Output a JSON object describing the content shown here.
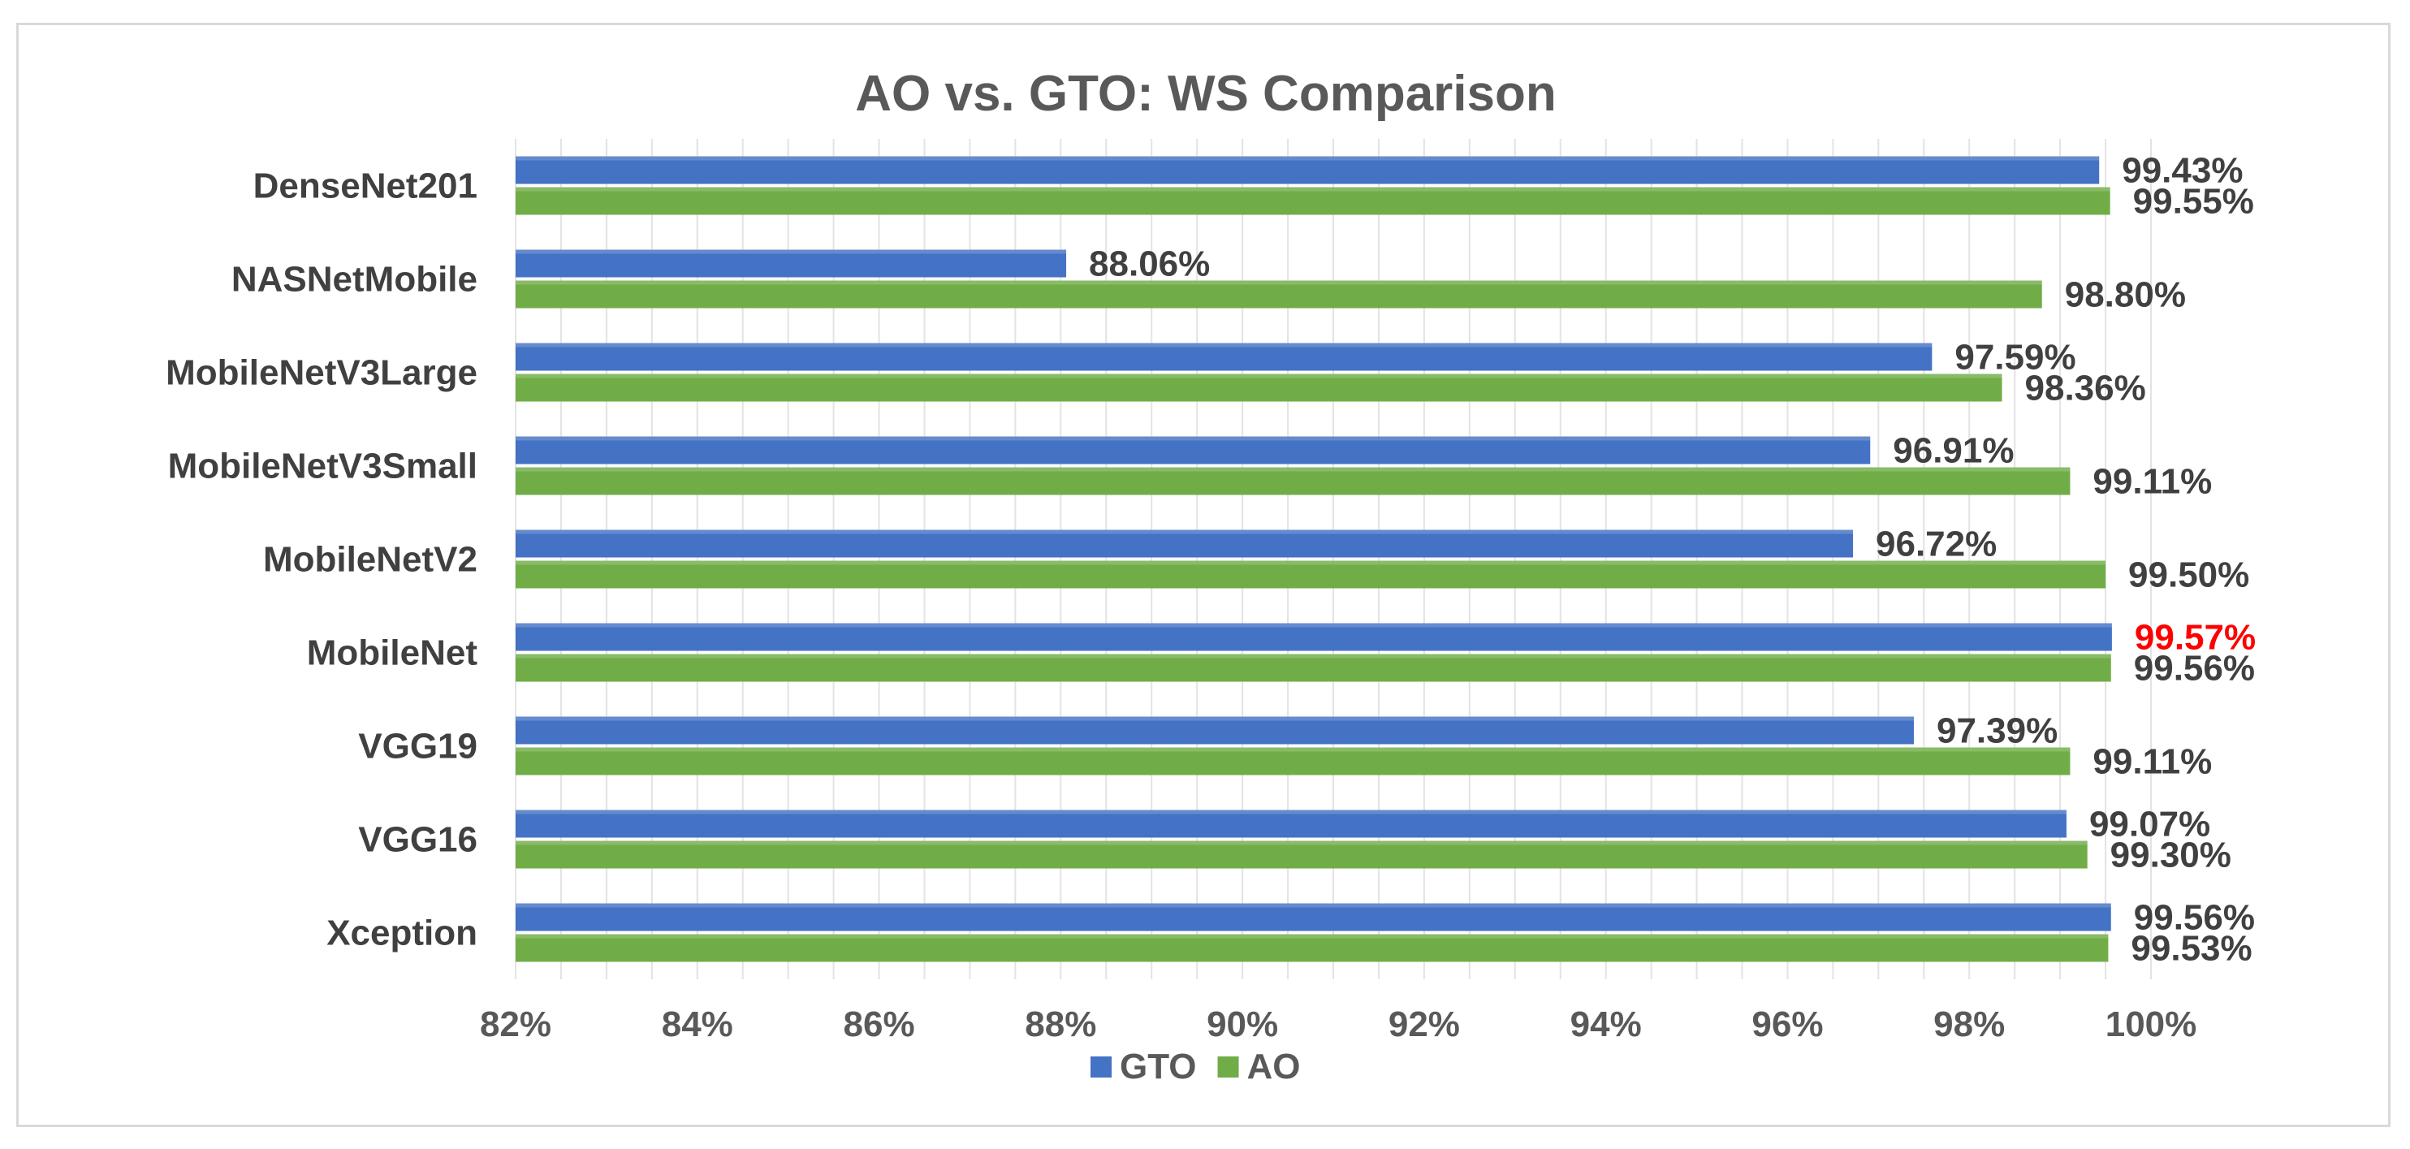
{
  "chart_data": {
    "type": "bar",
    "orientation": "horizontal",
    "title": "AO vs. GTO: WS Comparison",
    "categories": [
      "DenseNet201",
      "NASNetMobile",
      "MobileNetV3Large",
      "MobileNetV3Small",
      "MobileNetV2",
      "MobileNet",
      "VGG19",
      "VGG16",
      "Xception"
    ],
    "series": [
      {
        "name": "GTO",
        "color": "#4472c4",
        "values": [
          99.43,
          88.06,
          97.59,
          96.91,
          96.72,
          99.57,
          97.39,
          99.07,
          99.56
        ],
        "labels": [
          "99.43%",
          "88.06%",
          "97.59%",
          "96.91%",
          "96.72%",
          "99.57%",
          "97.39%",
          "99.07%",
          "99.56%"
        ]
      },
      {
        "name": "AO",
        "color": "#70ad47",
        "values": [
          99.55,
          98.8,
          98.36,
          99.11,
          99.5,
          99.56,
          99.11,
          99.3,
          99.53
        ],
        "labels": [
          "99.55%",
          "98.80%",
          "98.36%",
          "99.11%",
          "99.50%",
          "99.56%",
          "99.11%",
          "99.30%",
          "99.53%"
        ]
      }
    ],
    "highlight": {
      "series": "GTO",
      "category": "MobileNet",
      "color": "#ff0000"
    },
    "xlim": [
      82,
      100
    ],
    "xticks": [
      82,
      84,
      86,
      88,
      90,
      92,
      94,
      96,
      98,
      100
    ],
    "xtick_labels": [
      "82%",
      "84%",
      "86%",
      "88%",
      "90%",
      "92%",
      "94%",
      "96%",
      "98%",
      "100%"
    ],
    "xlabel": "",
    "ylabel": "",
    "legend": {
      "position": "bottom",
      "entries": [
        "GTO",
        "AO"
      ]
    },
    "grid": "vertical-minor"
  }
}
